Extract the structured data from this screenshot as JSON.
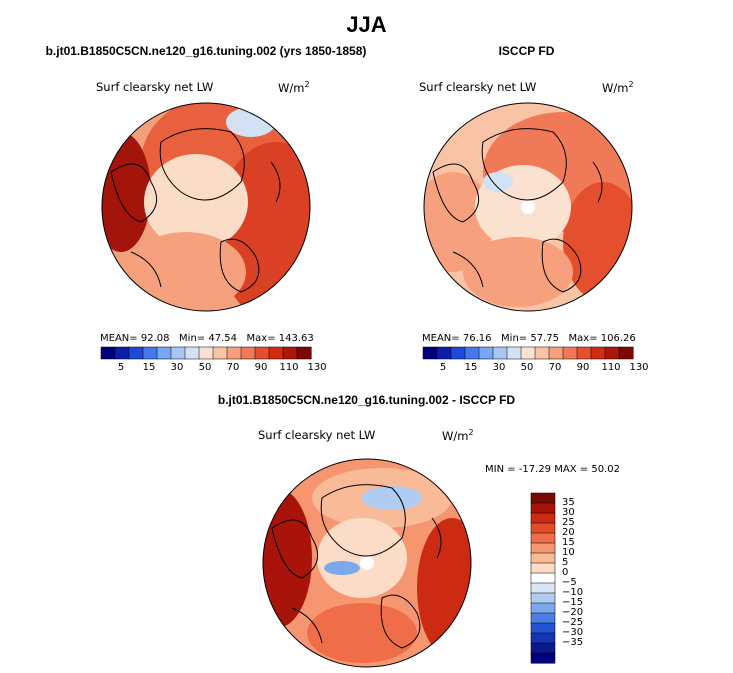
{
  "page_title": "JJA",
  "chart_data": [
    {
      "type": "heatmap",
      "projection": "north-polar-stereographic",
      "title": "b.jt01.B1850C5CN.ne120_g16.tuning.002 (yrs 1850-1858)",
      "variable": "Surf clearsky net LW",
      "units_base": "W/m",
      "units_exp": "2",
      "stats": {
        "mean_label": "MEAN=",
        "mean": "92.08",
        "min_label": "Min=",
        "min": "47.54",
        "max_label": "Max=",
        "max": "143.63"
      },
      "colorbar_ticks": [
        "5",
        "15",
        "30",
        "50",
        "70",
        "90",
        "110",
        "130"
      ]
    },
    {
      "type": "heatmap",
      "projection": "north-polar-stereographic",
      "title": "ISCCP FD",
      "variable": "Surf clearsky net LW",
      "units_base": "W/m",
      "units_exp": "2",
      "stats": {
        "mean_label": "MEAN=",
        "mean": "76.16",
        "min_label": "Min=",
        "min": "57.75",
        "max_label": "Max=",
        "max": "106.26"
      },
      "colorbar_ticks": [
        "5",
        "15",
        "30",
        "50",
        "70",
        "90",
        "110",
        "130"
      ]
    },
    {
      "type": "heatmap",
      "projection": "north-polar-stereographic",
      "title": "b.jt01.B1850C5CN.ne120_g16.tuning.002 - ISCCP FD",
      "variable": "Surf clearsky net LW",
      "units_base": "W/m",
      "units_exp": "2",
      "stats": {
        "min_label": "MIN =",
        "min": "-17.29",
        "max_label": "MAX =",
        "max": "50.02"
      },
      "colorbar_ticks": [
        "35",
        "30",
        "25",
        "20",
        "15",
        "10",
        "5",
        "0",
        "−5",
        "−10",
        "−15",
        "−20",
        "−25",
        "−30",
        "−35"
      ]
    }
  ],
  "colors": {
    "abs_scale": [
      "#00007f",
      "#0d1fa8",
      "#1f48d8",
      "#4678ec",
      "#78a6f2",
      "#a8c6f4",
      "#d2e2f4",
      "#fbe2d0",
      "#f9c4a6",
      "#f6a07e",
      "#f07a58",
      "#e64f2e",
      "#d12d15",
      "#ad160b",
      "#7c0803"
    ],
    "diff_scale": [
      "#7c0803",
      "#a9140a",
      "#cc2a13",
      "#e34a2a",
      "#f06d4a",
      "#f69670",
      "#f9ba98",
      "#fbdcc6",
      "#ffffff",
      "#d9e6f4",
      "#b0ccf0",
      "#7ba9ec",
      "#4b7fe6",
      "#2452d4",
      "#1434b0",
      "#0a1a8a",
      "#00007f"
    ]
  }
}
